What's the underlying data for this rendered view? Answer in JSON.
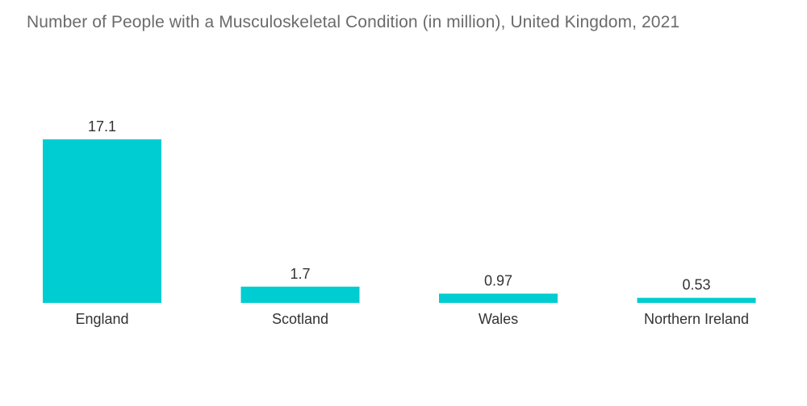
{
  "chart_data": {
    "type": "bar",
    "title": "Number of People with a Musculoskeletal Condition (in million), United Kingdom, 2021",
    "categories": [
      "England",
      "Scotland",
      "Wales",
      "Northern Ireland"
    ],
    "values": [
      17.1,
      1.7,
      0.97,
      0.53
    ],
    "value_labels": [
      "17.1",
      "1.7",
      "0.97",
      "0.53"
    ],
    "xlabel": "",
    "ylabel": "",
    "ylim": [
      0,
      17.1
    ],
    "grid": false,
    "bar_color": "#00cdd1"
  }
}
